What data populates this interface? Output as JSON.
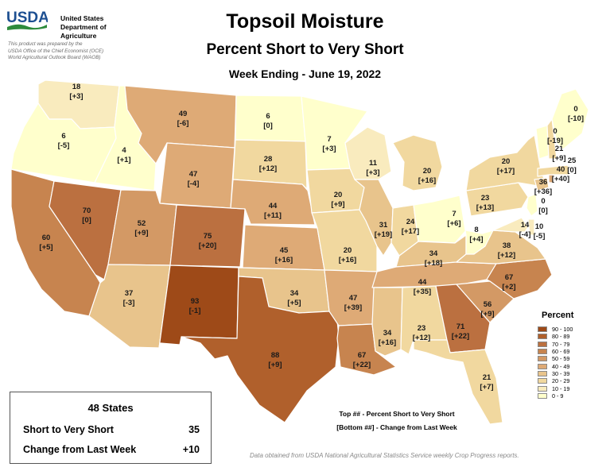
{
  "header": {
    "logo_text": "USDA",
    "agency_lines": [
      "United States",
      "Department of",
      "Agriculture"
    ],
    "prepared_lines": [
      "This product was prepared by the",
      "USDA Office of the Chief Economist (OCE)",
      "World Agricultural Outlook Board (WAOB)"
    ],
    "title": "Topsoil Moisture",
    "subtitle": "Percent Short to Very Short",
    "week": "Week Ending - June 19, 2022"
  },
  "map_data": {
    "colors": {
      "0-9": "#ffffcc",
      "10-19": "#f9ebbe",
      "20-29": "#f1d89f",
      "30-39": "#e8c48c",
      "40-49": "#deaa76",
      "50-59": "#d39965",
      "60-69": "#c7844f",
      "70-79": "#bb7040",
      "80-89": "#b0602c",
      "90-100": "#9e4a18"
    },
    "states": [
      {
        "abbr": "WA",
        "value": "18",
        "change": "[+3]",
        "bin": "10-19"
      },
      {
        "abbr": "OR",
        "value": "6",
        "change": "[-5]",
        "bin": "0-9"
      },
      {
        "abbr": "CA",
        "value": "60",
        "change": "[+5]",
        "bin": "60-69"
      },
      {
        "abbr": "ID",
        "value": "4",
        "change": "[+1]",
        "bin": "0-9"
      },
      {
        "abbr": "NV",
        "value": "70",
        "change": "[0]",
        "bin": "70-79"
      },
      {
        "abbr": "MT",
        "value": "49",
        "change": "[-6]",
        "bin": "40-49"
      },
      {
        "abbr": "WY",
        "value": "47",
        "change": "[-4]",
        "bin": "40-49"
      },
      {
        "abbr": "UT",
        "value": "52",
        "change": "[+9]",
        "bin": "50-59"
      },
      {
        "abbr": "AZ",
        "value": "37",
        "change": "[-3]",
        "bin": "30-39"
      },
      {
        "abbr": "CO",
        "value": "75",
        "change": "[+20]",
        "bin": "70-79"
      },
      {
        "abbr": "NM",
        "value": "93",
        "change": "[-1]",
        "bin": "90-100"
      },
      {
        "abbr": "ND",
        "value": "6",
        "change": "[0]",
        "bin": "0-9"
      },
      {
        "abbr": "SD",
        "value": "28",
        "change": "[+12]",
        "bin": "20-29"
      },
      {
        "abbr": "NE",
        "value": "44",
        "change": "[+11]",
        "bin": "40-49"
      },
      {
        "abbr": "KS",
        "value": "45",
        "change": "[+16]",
        "bin": "40-49"
      },
      {
        "abbr": "OK",
        "value": "34",
        "change": "[+5]",
        "bin": "30-39"
      },
      {
        "abbr": "TX",
        "value": "88",
        "change": "[+9]",
        "bin": "80-89"
      },
      {
        "abbr": "MN",
        "value": "7",
        "change": "[+3]",
        "bin": "0-9"
      },
      {
        "abbr": "IA",
        "value": "20",
        "change": "[+9]",
        "bin": "20-29"
      },
      {
        "abbr": "MO",
        "value": "20",
        "change": "[+16]",
        "bin": "20-29"
      },
      {
        "abbr": "AR",
        "value": "47",
        "change": "[+39]",
        "bin": "40-49"
      },
      {
        "abbr": "LA",
        "value": "67",
        "change": "[+22]",
        "bin": "60-69"
      },
      {
        "abbr": "WI",
        "value": "11",
        "change": "[+3]",
        "bin": "10-19"
      },
      {
        "abbr": "IL",
        "value": "31",
        "change": "[+19]",
        "bin": "30-39"
      },
      {
        "abbr": "MI",
        "value": "20",
        "change": "[+16]",
        "bin": "20-29"
      },
      {
        "abbr": "IN",
        "value": "24",
        "change": "[+17]",
        "bin": "20-29"
      },
      {
        "abbr": "OH",
        "value": "7",
        "change": "[+6]",
        "bin": "0-9"
      },
      {
        "abbr": "KY",
        "value": "34",
        "change": "[+18]",
        "bin": "30-39"
      },
      {
        "abbr": "TN",
        "value": "44",
        "change": "[+35]",
        "bin": "40-49"
      },
      {
        "abbr": "MS",
        "value": "34",
        "change": "[+16]",
        "bin": "30-39"
      },
      {
        "abbr": "AL",
        "value": "23",
        "change": "[+12]",
        "bin": "20-29"
      },
      {
        "abbr": "GA",
        "value": "71",
        "change": "[+22]",
        "bin": "70-79"
      },
      {
        "abbr": "FL",
        "value": "21",
        "change": "[+7]",
        "bin": "20-29"
      },
      {
        "abbr": "SC",
        "value": "56",
        "change": "[+9]",
        "bin": "50-59"
      },
      {
        "abbr": "NC",
        "value": "67",
        "change": "[+2]",
        "bin": "60-69"
      },
      {
        "abbr": "VA",
        "value": "38",
        "change": "[+12]",
        "bin": "30-39"
      },
      {
        "abbr": "WV",
        "value": "8",
        "change": "[+4]",
        "bin": "0-9"
      },
      {
        "abbr": "PA",
        "value": "23",
        "change": "[+13]",
        "bin": "20-29"
      },
      {
        "abbr": "NY",
        "value": "20",
        "change": "[+17]",
        "bin": "20-29"
      },
      {
        "abbr": "MD",
        "value": "14",
        "change": "[-4]",
        "bin": "10-19"
      },
      {
        "abbr": "DE",
        "value": "10",
        "change": "[-5]",
        "bin": "10-19"
      },
      {
        "abbr": "NJ",
        "value": "0",
        "change": "[0]",
        "bin": "0-9"
      },
      {
        "abbr": "CT",
        "value": "36",
        "change": "[+36]",
        "bin": "30-39"
      },
      {
        "abbr": "RI",
        "value": "40",
        "change": "[+40]",
        "bin": "40-49"
      },
      {
        "abbr": "MA",
        "value": "25",
        "change": "[0]",
        "bin": "20-29"
      },
      {
        "abbr": "VT",
        "value": "0",
        "change": "[-19]",
        "bin": "0-9"
      },
      {
        "abbr": "NH",
        "value": "21",
        "change": "[+9]",
        "bin": "20-29"
      },
      {
        "abbr": "ME",
        "value": "0",
        "change": "[-10]",
        "bin": "0-9"
      }
    ]
  },
  "legend": {
    "title": "Percent",
    "items": [
      {
        "label": "90 - 100",
        "color": "#9e4a18"
      },
      {
        "label": "80 - 89",
        "color": "#b0602c"
      },
      {
        "label": "70 - 79",
        "color": "#bb7040"
      },
      {
        "label": "60 - 69",
        "color": "#c7844f"
      },
      {
        "label": "50 - 59",
        "color": "#d39965"
      },
      {
        "label": "40 - 49",
        "color": "#deaa76"
      },
      {
        "label": "30 - 39",
        "color": "#e8c48c"
      },
      {
        "label": "20 - 29",
        "color": "#f1d89f"
      },
      {
        "label": "10 - 19",
        "color": "#f9ebbe"
      },
      {
        "label": "0 - 9",
        "color": "#ffffcc"
      }
    ]
  },
  "summary": {
    "title": "48 States",
    "rows": [
      {
        "label": "Short to Very Short",
        "value": "35"
      },
      {
        "label": "Change from Last Week",
        "value": "+10"
      }
    ]
  },
  "notes": {
    "top": "Top ## - Percent Short to Very Short",
    "bottom": "[Bottom ##] - Change from Last Week",
    "source": "Data obtained from USDA National Agricultural Statistics Service weekly Crop Progress reports."
  }
}
